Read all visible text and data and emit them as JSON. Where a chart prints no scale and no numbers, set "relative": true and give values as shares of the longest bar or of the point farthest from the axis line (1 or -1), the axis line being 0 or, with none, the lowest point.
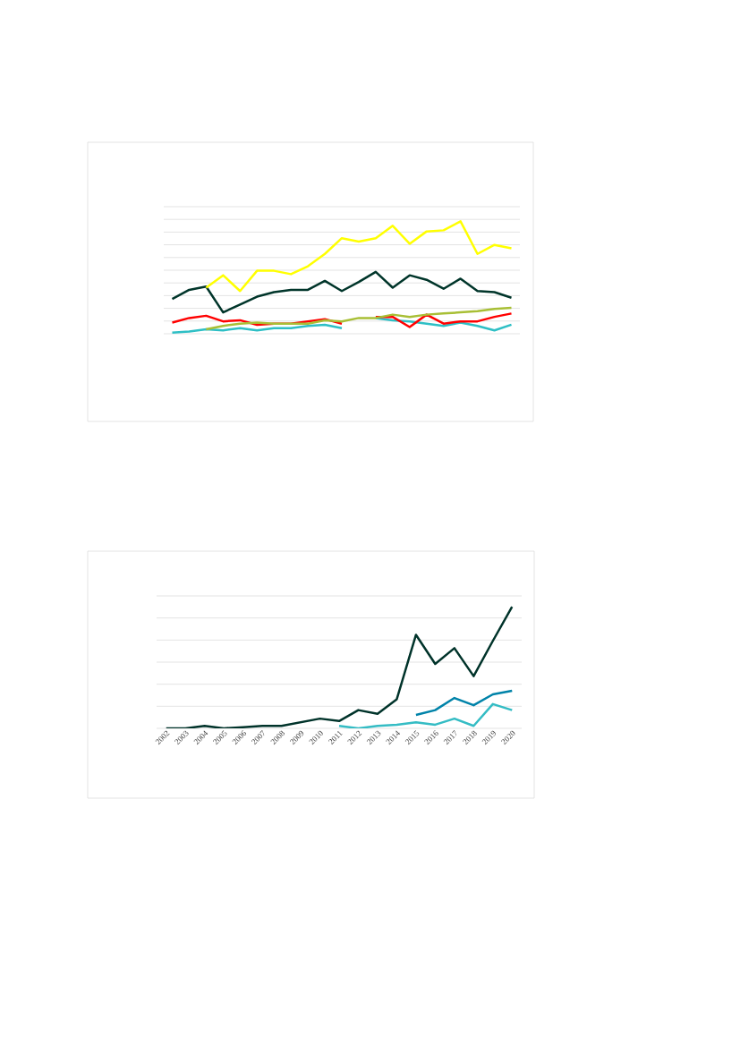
{
  "chart_data": [
    {
      "type": "line",
      "relative": true,
      "grid": "y",
      "categories": [
        null,
        null,
        null,
        null,
        null,
        null,
        null,
        null,
        null,
        null,
        null,
        null,
        null,
        null,
        null,
        null,
        null,
        null,
        null,
        null,
        null
      ],
      "series": [
        {
          "color": "#00352a",
          "values": [
            0.31,
            0.39,
            0.42,
            0.19,
            0.26,
            0.33,
            0.37,
            0.39,
            0.39,
            0.47,
            0.38,
            0.46,
            0.55,
            0.41,
            0.52,
            0.48,
            0.4,
            0.49,
            0.38,
            0.37,
            0.32
          ]
        },
        {
          "color": "#2ebfc5",
          "values": [
            0.01,
            0.02,
            0.04,
            0.03,
            0.05,
            0.03,
            0.05,
            0.05,
            0.07,
            0.08,
            0.05,
            null,
            0.14,
            0.12,
            0.11,
            0.09,
            0.07,
            0.1,
            0.07,
            0.03,
            0.08
          ]
        },
        {
          "color": "#ff0000",
          "values": [
            0.1,
            0.14,
            0.16,
            0.11,
            0.12,
            0.08,
            0.09,
            0.09,
            0.11,
            0.13,
            0.09,
            null,
            0.15,
            0.15,
            0.06,
            0.17,
            0.09,
            0.11,
            0.11,
            0.15,
            0.18
          ]
        },
        {
          "color": "#ffff00",
          "values": [
            null,
            null,
            0.41,
            0.52,
            0.38,
            0.56,
            0.56,
            0.53,
            0.6,
            0.71,
            0.85,
            0.82,
            0.85,
            0.96,
            0.8,
            0.91,
            0.92,
            1.0,
            0.71,
            0.79,
            0.76
          ]
        },
        {
          "color": "#a8bf35",
          "values": [
            null,
            null,
            0.04,
            0.07,
            0.09,
            0.1,
            0.09,
            0.09,
            0.09,
            0.12,
            0.11,
            0.14,
            0.14,
            0.17,
            0.15,
            0.17,
            0.18,
            0.19,
            0.2,
            0.22,
            0.23
          ]
        }
      ]
    },
    {
      "type": "line",
      "relative": true,
      "grid": "y",
      "categories": [
        "2002",
        "2003",
        "2004",
        "2005",
        "2006",
        "2007",
        "2008",
        "2009",
        "2010",
        "2011",
        "2012",
        "2013",
        "2014",
        "2015",
        "2016",
        "2017",
        "2018",
        "2019",
        "2020"
      ],
      "series": [
        {
          "color": "#00332a",
          "values": [
            0,
            0,
            0.02,
            0,
            0.01,
            0.02,
            0.02,
            0.05,
            0.08,
            0.06,
            0.15,
            0.12,
            0.24,
            0.77,
            0.53,
            0.66,
            0.43,
            0.72,
            1.0
          ]
        },
        {
          "color": "#34bcc4",
          "values": [
            null,
            null,
            null,
            null,
            null,
            null,
            null,
            null,
            null,
            0.02,
            0,
            0.02,
            0.03,
            0.05,
            0.03,
            0.08,
            0.02,
            0.2,
            0.15
          ]
        },
        {
          "color": "#0083a9",
          "values": [
            null,
            null,
            null,
            null,
            null,
            null,
            null,
            null,
            null,
            null,
            null,
            null,
            null,
            0.11,
            0.15,
            0.25,
            0.19,
            0.28,
            0.31
          ]
        }
      ]
    }
  ]
}
